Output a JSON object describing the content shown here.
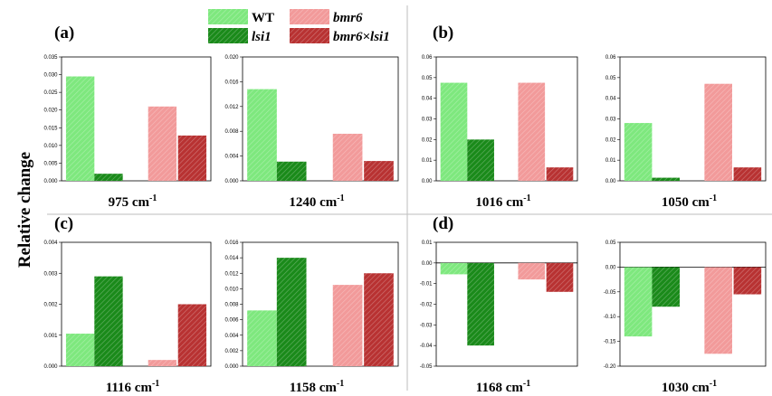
{
  "figure": {
    "ylabel": "Relative change",
    "panel_labels": [
      "(a)",
      "(b)",
      "(c)",
      "(d)"
    ]
  },
  "legend": {
    "position": "top-center",
    "entries": [
      {
        "name": "WT",
        "italic": false,
        "color": "#7ee87e"
      },
      {
        "name": "lsi1",
        "italic": true,
        "color": "#1a8a1a"
      },
      {
        "name": "bmr6",
        "italic": true,
        "color": "#f29a9a"
      },
      {
        "name": "bmr6×lsi1",
        "italic": true,
        "color": "#b83232"
      }
    ]
  },
  "colors": {
    "WT": "#7ee87e",
    "lsi1": "#1a8a1a",
    "bmr6": "#f29a9a",
    "bmr6xlsi1": "#b83232",
    "divider": "#bdbdbd"
  },
  "chart_data": [
    {
      "type": "bar",
      "panel": "(a)",
      "title": "975 cm-1",
      "title_num": "975 cm",
      "title_sup": "-1",
      "categories": [
        "WT",
        "lsi1",
        "bmr6",
        "bmr6×lsi1"
      ],
      "values": [
        0.0295,
        0.002,
        0.021,
        0.0128
      ],
      "ylim": [
        0,
        0.035
      ],
      "yticks": [
        "0.000",
        "0.005",
        "0.010",
        "0.015",
        "0.020",
        "0.025",
        "0.030",
        "0.035"
      ]
    },
    {
      "type": "bar",
      "panel": "(a)",
      "title": "1240 cm-1",
      "title_num": "1240 cm",
      "title_sup": "-1",
      "categories": [
        "WT",
        "lsi1",
        "bmr6",
        "bmr6×lsi1"
      ],
      "values": [
        0.0148,
        0.0031,
        0.0076,
        0.0032
      ],
      "ylim": [
        0,
        0.02
      ],
      "yticks": [
        "0.000",
        "0.004",
        "0.008",
        "0.012",
        "0.016",
        "0.020"
      ]
    },
    {
      "type": "bar",
      "panel": "(b)",
      "title": "1016 cm-1",
      "title_num": "1016 cm",
      "title_sup": "-1",
      "categories": [
        "WT",
        "lsi1",
        "bmr6",
        "bmr6×lsi1"
      ],
      "values": [
        0.0475,
        0.02,
        0.0475,
        0.0065
      ],
      "ylim": [
        0,
        0.06
      ],
      "yticks": [
        "0.00",
        "0.01",
        "0.02",
        "0.03",
        "0.04",
        "0.05",
        "0.06"
      ]
    },
    {
      "type": "bar",
      "panel": "(b)",
      "title": "1050 cm-1",
      "title_num": "1050 cm",
      "title_sup": "-1",
      "categories": [
        "WT",
        "lsi1",
        "bmr6",
        "bmr6×lsi1"
      ],
      "values": [
        0.028,
        0.0015,
        0.047,
        0.0065
      ],
      "ylim": [
        0,
        0.06
      ],
      "yticks": [
        "0.00",
        "0.01",
        "0.02",
        "0.03",
        "0.04",
        "0.05",
        "0.06"
      ]
    },
    {
      "type": "bar",
      "panel": "(c)",
      "title": "1116 cm-1",
      "title_num": "1116 cm",
      "title_sup": "-1",
      "categories": [
        "WT",
        "lsi1",
        "bmr6",
        "bmr6×lsi1"
      ],
      "values": [
        0.00105,
        0.0029,
        0.0002,
        0.002
      ],
      "ylim": [
        0,
        0.004
      ],
      "yticks": [
        "0.000",
        "0.001",
        "0.002",
        "0.003",
        "0.004"
      ]
    },
    {
      "type": "bar",
      "panel": "(c)",
      "title": "1158 cm-1",
      "title_num": "1158 cm",
      "title_sup": "-1",
      "categories": [
        "WT",
        "lsi1",
        "bmr6",
        "bmr6×lsi1"
      ],
      "values": [
        0.0072,
        0.014,
        0.0105,
        0.012
      ],
      "ylim": [
        0,
        0.016
      ],
      "yticks": [
        "0.000",
        "0.002",
        "0.004",
        "0.006",
        "0.008",
        "0.010",
        "0.012",
        "0.014",
        "0.016"
      ]
    },
    {
      "type": "bar",
      "panel": "(d)",
      "title": "1168 cm-1",
      "title_num": "1168 cm",
      "title_sup": "-1",
      "categories": [
        "WT",
        "lsi1",
        "bmr6",
        "bmr6×lsi1"
      ],
      "values": [
        -0.0055,
        -0.04,
        -0.008,
        -0.014
      ],
      "ylim": [
        -0.05,
        0.01
      ],
      "yticks": [
        "-0.05",
        "-0.04",
        "-0.03",
        "-0.02",
        "-0.01",
        "0.00",
        "0.01"
      ]
    },
    {
      "type": "bar",
      "panel": "(d)",
      "title": "1030 cm-1",
      "title_num": "1030 cm",
      "title_sup": "-1",
      "categories": [
        "WT",
        "lsi1",
        "bmr6",
        "bmr6×lsi1"
      ],
      "values": [
        -0.14,
        -0.08,
        -0.175,
        -0.055
      ],
      "ylim": [
        -0.2,
        0.05
      ],
      "yticks": [
        "-0.20",
        "-0.15",
        "-0.10",
        "-0.05",
        "0.00",
        "0.05"
      ]
    }
  ]
}
